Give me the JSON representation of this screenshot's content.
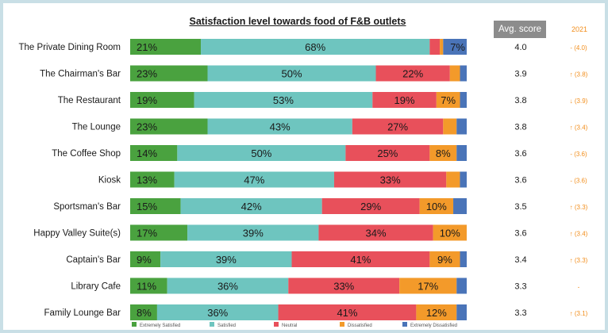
{
  "chart_data": {
    "type": "bar",
    "orientation": "horizontal",
    "stacked": true,
    "title": "Satisfaction level towards food of F&B outlets",
    "categories": [
      "The Private Dining Room",
      "The Chairman's Bar",
      "The Restaurant",
      "The Lounge",
      "The Coffee Shop",
      "Kiosk",
      "Sportsman's Bar",
      "Happy Valley Suite(s)",
      "Captain's Bar",
      "Library Cafe",
      "Family Lounge Bar"
    ],
    "series": [
      {
        "name": "Extremely Satisfied",
        "color": "#4aa23f",
        "values": [
          21,
          23,
          19,
          23,
          14,
          13,
          15,
          17,
          9,
          11,
          8
        ]
      },
      {
        "name": "Satisfied",
        "color": "#6ec5bf",
        "values": [
          68,
          50,
          53,
          43,
          50,
          47,
          42,
          39,
          39,
          36,
          36
        ]
      },
      {
        "name": "Neutral",
        "color": "#e8505b",
        "values": [
          3,
          22,
          19,
          27,
          25,
          33,
          29,
          34,
          41,
          33,
          41
        ]
      },
      {
        "name": "Dissatisfied",
        "color": "#f39a2a",
        "values": [
          1,
          3,
          7,
          4,
          8,
          4,
          10,
          10,
          9,
          17,
          12
        ]
      },
      {
        "name": "Extremely Dissatisfied",
        "color": "#4a74b8",
        "values": [
          7,
          2,
          2,
          3,
          3,
          2,
          4,
          0,
          2,
          3,
          3
        ]
      }
    ],
    "data_labels": [
      [
        "21%",
        "68%",
        "",
        "",
        "7%"
      ],
      [
        "23%",
        "50%",
        "22%",
        "",
        ""
      ],
      [
        "19%",
        "53%",
        "19%",
        "7%",
        ""
      ],
      [
        "23%",
        "43%",
        "27%",
        "",
        ""
      ],
      [
        "14%",
        "50%",
        "25%",
        "8%",
        ""
      ],
      [
        "13%",
        "47%",
        "33%",
        "",
        ""
      ],
      [
        "15%",
        "42%",
        "29%",
        "10%",
        ""
      ],
      [
        "17%",
        "39%",
        "34%",
        "10%",
        ""
      ],
      [
        "9%",
        "39%",
        "41%",
        "9%",
        ""
      ],
      [
        "11%",
        "36%",
        "33%",
        "17%",
        ""
      ],
      [
        "8%",
        "36%",
        "41%",
        "12%",
        ""
      ]
    ],
    "xlim": [
      0,
      100
    ],
    "legend_position": "bottom",
    "avg_header": "Avg. score",
    "avg_scores": [
      "4.0",
      "3.9",
      "3.8",
      "3.8",
      "3.6",
      "3.6",
      "3.5",
      "3.6",
      "3.4",
      "3.3",
      "3.3"
    ],
    "year_header": "2021",
    "year_compare": [
      {
        "arrow": "-",
        "value": "(4.0)"
      },
      {
        "arrow": "↑",
        "value": "(3.8)"
      },
      {
        "arrow": "↓",
        "value": "(3.9)"
      },
      {
        "arrow": "↑",
        "value": "(3.4)"
      },
      {
        "arrow": "-",
        "value": "(3.6)"
      },
      {
        "arrow": "-",
        "value": "(3.6)"
      },
      {
        "arrow": "↑",
        "value": "(3.3)"
      },
      {
        "arrow": "↑",
        "value": "(3.4)"
      },
      {
        "arrow": "↑",
        "value": "(3.3)"
      },
      {
        "arrow": "-",
        "value": ""
      },
      {
        "arrow": "↑",
        "value": "(3.1)"
      }
    ]
  }
}
